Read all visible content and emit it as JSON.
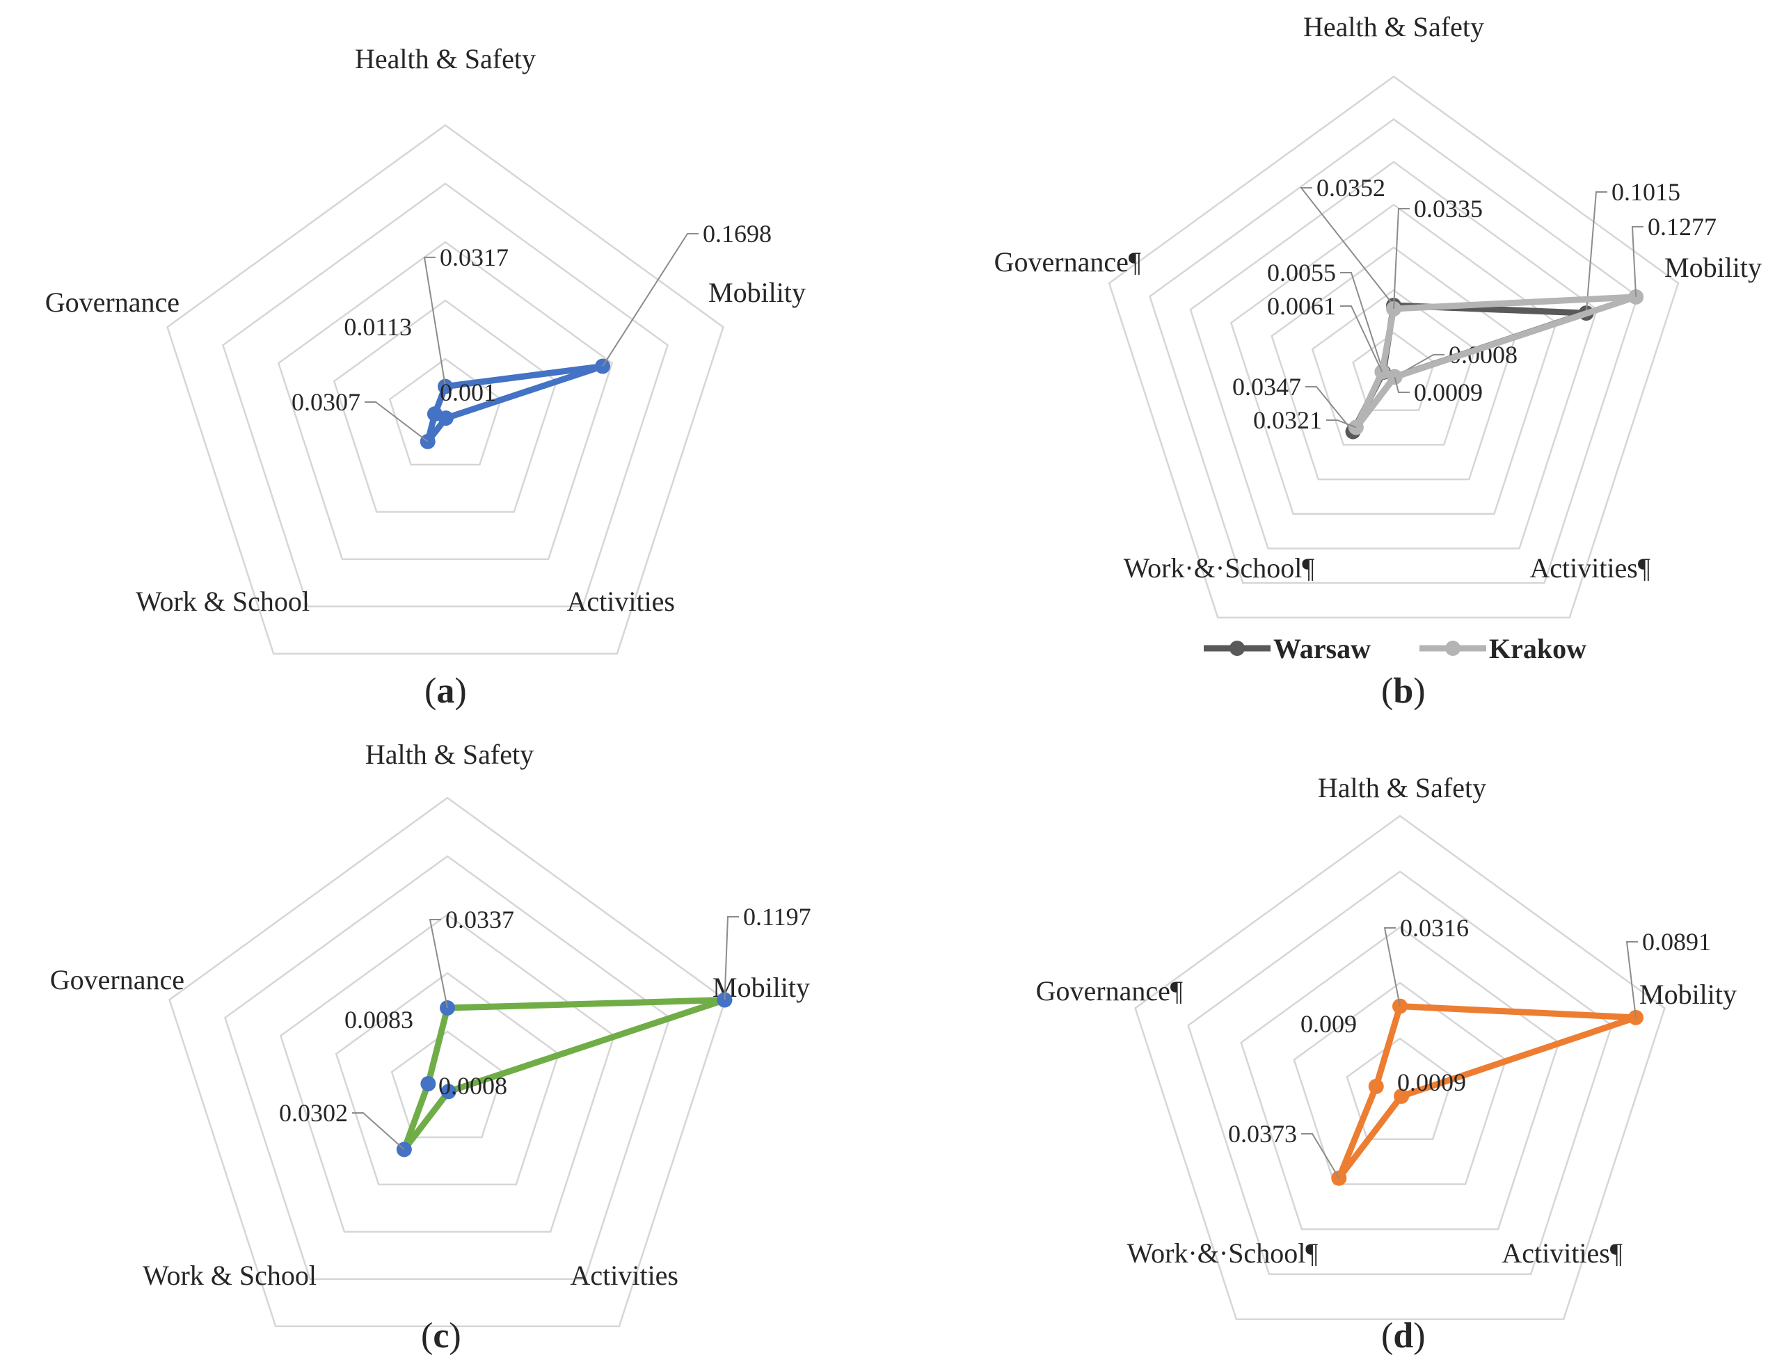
{
  "chart_data": [
    {
      "id": "a",
      "type": "radar",
      "panel_label": "a",
      "axes": [
        "Health & Safety",
        "Mobility",
        "Activities",
        "Work & School",
        "Governance"
      ],
      "range": [
        0,
        0.3
      ],
      "rings": 5,
      "series": [
        {
          "name": "",
          "color": "#4472c4",
          "marker_color": "#4472c4",
          "values": [
            0.0317,
            0.1698,
            0.001,
            0.0307,
            0.0113
          ],
          "labels": [
            "0.0317",
            "0.1698",
            "0.001",
            "0.0307",
            "0.0113"
          ]
        }
      ]
    },
    {
      "id": "b",
      "type": "radar",
      "panel_label": "b",
      "axes": [
        "Health & Safety",
        "Mobility",
        "Activities¶",
        "Work·&·School¶",
        "Governance¶"
      ],
      "range": [
        0,
        0.15
      ],
      "rings": 7,
      "legend": {
        "position": "bottom"
      },
      "series": [
        {
          "name": "Warsaw",
          "color": "#595959",
          "marker_color": "#595959",
          "values": [
            0.0352,
            0.1015,
            0.0008,
            0.0347,
            0.0055
          ],
          "labels": [
            "0.0352",
            "0.1015",
            "0.0008",
            "0.0347",
            "0.0055"
          ]
        },
        {
          "name": "Krakow",
          "color": "#b4b4b4",
          "marker_color": "#b4b4b4",
          "values": [
            0.0335,
            0.1277,
            0.0009,
            0.0321,
            0.0061
          ],
          "labels": [
            "0.0335",
            "0.1277",
            "0.0009",
            "0.0321",
            "0.0061"
          ]
        }
      ]
    },
    {
      "id": "c",
      "type": "radar",
      "panel_label": "c",
      "axes": [
        "Halth & Safety",
        "Mobility",
        "Activities",
        "Work & School",
        "Governance"
      ],
      "range": [
        0,
        0.12
      ],
      "rings": 5,
      "series": [
        {
          "name": "",
          "color": "#70ad47",
          "marker_color": "#4472c4",
          "values": [
            0.0337,
            0.1197,
            0.0008,
            0.0302,
            0.0083
          ],
          "labels": [
            "0.0337",
            "0.1197",
            "0.0008",
            "0.0302",
            "0.0083"
          ]
        }
      ]
    },
    {
      "id": "d",
      "type": "radar",
      "panel_label": "d",
      "axes": [
        "Halth & Safety",
        "Mobility",
        "Activities¶",
        "Work·&·School¶",
        "Governance¶"
      ],
      "range": [
        0,
        0.1
      ],
      "rings": 5,
      "series": [
        {
          "name": "",
          "color": "#ed7d31",
          "marker_color": "#ed7d31",
          "values": [
            0.0316,
            0.0891,
            0.0009,
            0.0373,
            0.009
          ],
          "labels": [
            "0.0316",
            "0.0891",
            "0.0009",
            "0.0373",
            "0.009"
          ]
        }
      ]
    }
  ]
}
